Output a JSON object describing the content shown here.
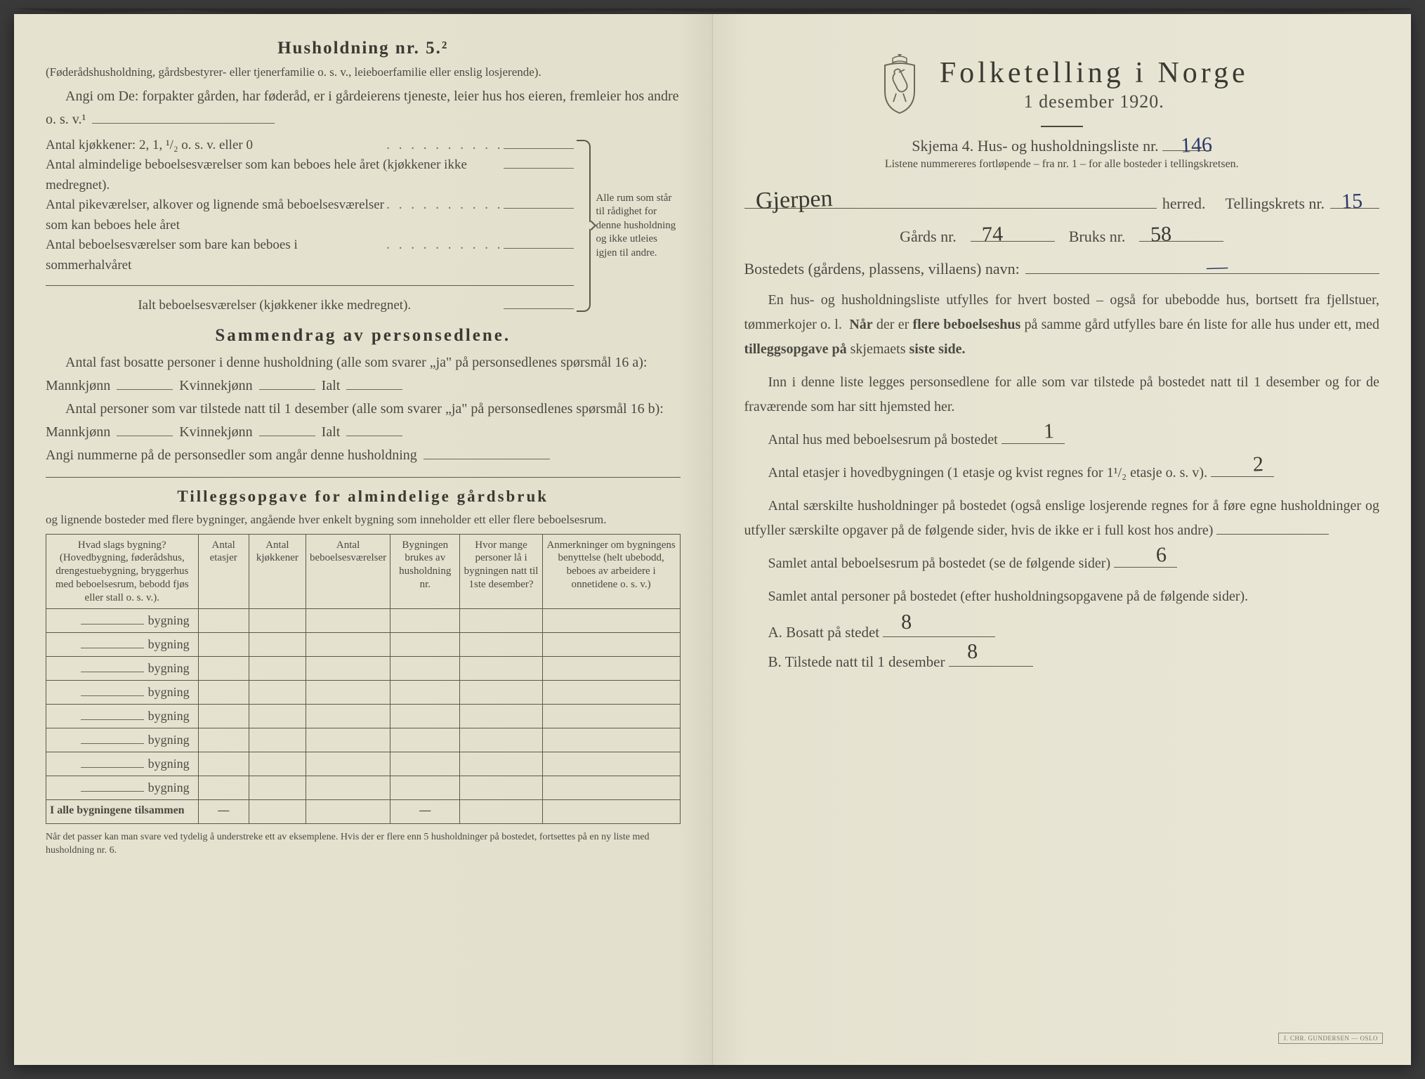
{
  "colors": {
    "paper": "#e8e4d4",
    "ink": "#4a4a42",
    "ink_dark": "#3a3a32",
    "rule": "#5a5a4a",
    "handwriting_blue": "#2a3a6a",
    "background": "#3a3a3a"
  },
  "left": {
    "household_title": "Husholdning nr. 5.²",
    "household_desc": "(Føderådshusholdning, gårdsbestyrer- eller tjenerfamilie o. s. v., leieboerfamilie eller enslig losjerende).",
    "angi_line": "Angi om De: forpakter gården, har føderåd, er i gårdeierens tjeneste, leier hus hos eieren, fremleier hos andre o. s. v.¹",
    "kjokkener_label": "Antal kjøkkener: 2, 1, ¹/₂ o. s. v. eller 0",
    "rooms": [
      "Antal almindelige beboelsesværelser som kan beboes hele året (kjøkkener ikke medregnet).",
      "Antal pikeværelser, alkover og lignende små beboelsesværelser som kan beboes hele året",
      "Antal beboelsesværelser som bare kan beboes i sommerhalvåret"
    ],
    "ialt_label": "Ialt beboelsesværelser (kjøkkener ikke medregnet).",
    "brace_note": "Alle rum som står til rådighet for denne husholdning og ikke utleies igjen til andre.",
    "sammendrag_title": "Sammendrag av personsedlene.",
    "sammendrag_p1": "Antal fast bosatte personer i denne husholdning (alle som svarer „ja\" på personsedlenes spørsmål 16 a): Mannkjønn",
    "kvinne": "Kvinnekjønn",
    "ialt": "Ialt",
    "sammendrag_p2": "Antal personer som var tilstede natt til 1 desember (alle som svarer „ja\" på personsedlenes spørsmål 16 b): Mannkjønn",
    "angi_num": "Angi nummerne på de personsedler som angår denne husholdning",
    "tillegg_title": "Tilleggsopgave for almindelige gårdsbruk",
    "tillegg_intro": "og lignende bosteder med flere bygninger, angående hver enkelt bygning som inneholder ett eller flere beboelsesrum.",
    "table": {
      "headers": [
        "Hvad slags bygning?\n(Hovedbygning, føderådshus, drengestuebygning, bryggerhus med beboelsesrum, bebodd fjøs eller stall o. s. v.).",
        "Antal etasjer",
        "Antal kjøkkener",
        "Antal beboelsesværelser",
        "Bygningen brukes av husholdning nr.",
        "Hvor mange personer lå i bygningen natt til 1ste desember?",
        "Anmerkninger om bygningens benyttelse (helt ubebodd, beboes av arbeidere i onnetidene o. s. v.)"
      ],
      "row_label": "bygning",
      "row_count": 8,
      "total_label": "I alle bygningene tilsammen"
    },
    "footnote": "Når det passer kan man svare ved tydelig å understreke ett av eksemplene.\nHvis der er flere enn 5 husholdninger på bostedet, fortsettes på en ny liste med husholdning nr. 6."
  },
  "right": {
    "main_title": "Folketelling i Norge",
    "date_line": "1 desember 1920.",
    "skjema_label": "Skjema 4.  Hus- og husholdningsliste nr.",
    "skjema_nr": "146",
    "list_note": "Listene nummereres fortløpende – fra nr. 1 – for alle bosteder i tellingskretsen.",
    "herred_value": "Gjerpen",
    "herred_label": "herred.",
    "krets_label": "Tellingskrets nr.",
    "krets_nr": "15",
    "gards_label": "Gårds nr.",
    "gards_nr": "74",
    "bruks_label": "Bruks nr.",
    "bruks_nr": "58",
    "bosted_label": "Bostedets (gårdens, plassens, villaens) navn:",
    "bosted_value": "—",
    "para1": "En hus- og husholdningsliste utfylles for hvert bosted – også for ubebodde hus, bortsett fra fjellstuer, tømmerkojer o. l.  Når der er flere beboelseshus på samme gård utfylles bare én liste for alle hus under ett, med tilleggsopgave på skjemaets siste side.",
    "para2": "Inn i denne liste legges personsedlene for alle som var tilstede på bostedet natt til 1 desember og for de fraværende som har sitt hjemsted her.",
    "antal_hus_label": "Antal hus med beboelsesrum på bostedet",
    "antal_hus": "1",
    "etasjer_label_a": "Antal etasjer i hovedbygningen (1 etasje og kvist regnes for 1¹/₂ etasje o. s. v).",
    "etasjer": "2",
    "saerskilte": "Antal særskilte husholdninger på bostedet (også enslige losjerende regnes for å føre egne husholdninger og utfyller særskilte opgaver på de følgende sider, hvis de ikke er i full kost hos andre)",
    "samlet_rum_label": "Samlet antal beboelsesrum på bostedet (se de følgende sider)",
    "samlet_rum": "6",
    "samlet_pers_label": "Samlet antal personer på bostedet (efter husholdningsopgavene på de følgende sider).",
    "a_label": "A.  Bosatt på stedet",
    "a_value": "8",
    "b_label": "B.  Tilstede natt til 1 desember",
    "b_value": "8",
    "printer_stamp": "J. CHR. GUNDERSEN — OSLO"
  }
}
